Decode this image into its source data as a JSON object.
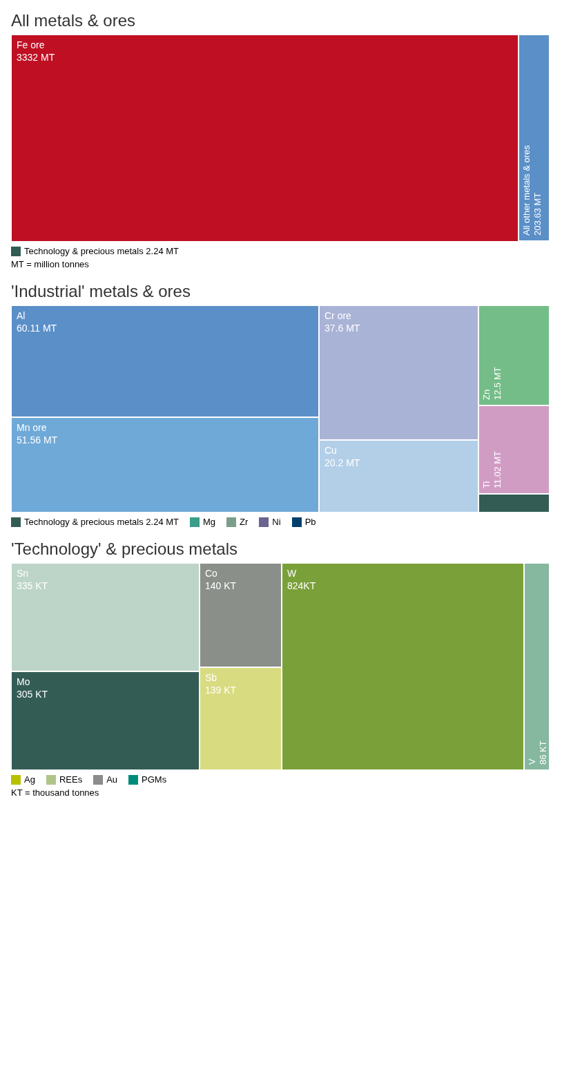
{
  "chart_data": [
    {
      "type": "other",
      "title": "All metals & ores",
      "categories": [
        "Fe ore",
        "All other metals & ores",
        "Technology & precious metals"
      ],
      "values": [
        3332,
        203.63,
        2.24
      ],
      "value_labels": [
        "3332 MT",
        "203.63 MT",
        "2.24 MT"
      ],
      "colors": [
        "#be0f23",
        "#5b8fc7",
        "#335c55"
      ],
      "annotations": [
        "MT = million tonnes"
      ]
    },
    {
      "type": "other",
      "title": "'Industrial' metals & ores",
      "categories": [
        "Al",
        "Mn ore",
        "Cr ore",
        "Cu",
        "Zn",
        "Ti",
        "Technology & precious metals",
        "Mg",
        "Zr",
        "Ni",
        "Pb"
      ],
      "values": [
        60.11,
        51.56,
        37.6,
        20.2,
        12.5,
        11.02,
        2.24,
        null,
        null,
        null,
        null
      ],
      "value_labels": [
        "60.11 MT",
        "51.56 MT",
        "37.6 MT",
        "20.2 MT",
        "12.5 MT",
        "11.02 MT",
        "2.24 MT",
        null,
        null,
        null,
        null
      ],
      "colors": [
        "#5b8fc7",
        "#6ea9d8",
        "#a9b3d6",
        "#b3cfe8",
        "#74bd88",
        "#d19cc4",
        "#335c55",
        "#3a9e8a",
        "#7a9e8a",
        "#6a6490",
        "#003f6b"
      ]
    },
    {
      "type": "other",
      "title": "'Technology' & precious metals",
      "categories": [
        "Sn",
        "Mo",
        "Co",
        "Sb",
        "W",
        "V",
        "Ag",
        "REEs",
        "Au",
        "PGMs"
      ],
      "values": [
        335,
        305,
        140,
        139,
        824,
        86,
        null,
        null,
        null,
        null
      ],
      "value_labels": [
        "335 KT",
        "305 KT",
        "140 KT",
        "139 KT",
        "824KT",
        "86 KT",
        null,
        null,
        null,
        null
      ],
      "colors": [
        "#bdd5c8",
        "#335c55",
        "#8a8f8a",
        "#d9db80",
        "#7aa03a",
        "#86b8a0",
        "#b8c000",
        "#b0c48a",
        "#8c8c8c",
        "#008b7a"
      ],
      "annotations": [
        "KT = thousand tonnes"
      ]
    }
  ]
}
